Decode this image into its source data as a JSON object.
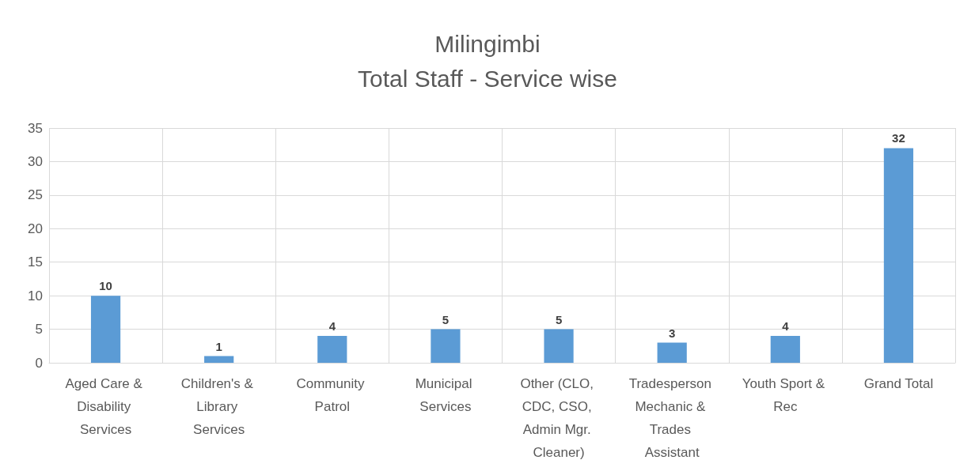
{
  "chart_data": {
    "type": "bar",
    "title": "Milingimbi\nTotal Staff - Service wise",
    "categories": [
      "Aged Care & Disability Services",
      "Children's & Library Services",
      "Community Patrol",
      "Municipal Services",
      "Other (CLO, CDC, CSO, Admin Mgr. Cleaner)",
      "Tradesperson Mechanic & Trades Assistant",
      "Youth Sport & Rec",
      "Grand Total"
    ],
    "values": [
      10,
      1,
      4,
      5,
      5,
      3,
      4,
      32
    ],
    "color": "#5b9bd5",
    "ylim": [
      0,
      35
    ],
    "yticks": [
      0,
      5,
      10,
      15,
      20,
      25,
      30,
      35
    ],
    "grid": true,
    "data_labels": true
  }
}
